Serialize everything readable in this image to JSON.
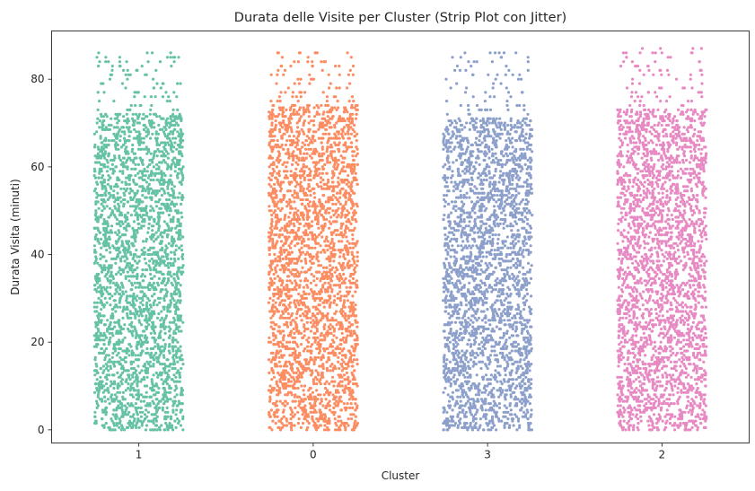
{
  "chart_data": {
    "type": "scatter",
    "variant": "strip-plot-with-jitter",
    "title": "Durata delle Visite per Cluster (Strip Plot con Jitter)",
    "xlabel": "Cluster",
    "ylabel": "Durata Visita (minuti)",
    "categories": [
      "1",
      "0",
      "3",
      "2"
    ],
    "y_ticks": [
      0,
      20,
      40,
      60,
      80
    ],
    "ylim": [
      -3,
      91
    ],
    "grid": false,
    "legend": "none",
    "series": [
      {
        "category": "1",
        "color": "#66c2a5",
        "dense_min": 0,
        "dense_max": 72,
        "sparse_max": 86,
        "sparse_values": [
          73,
          74,
          75,
          76,
          77,
          78,
          79,
          80,
          81,
          82,
          83,
          84,
          85,
          86
        ]
      },
      {
        "category": "0",
        "color": "#fc8d62",
        "dense_min": 0,
        "dense_max": 74,
        "sparse_max": 86,
        "sparse_values": [
          75,
          76,
          77,
          78,
          79,
          80,
          81,
          82,
          83,
          84,
          85,
          86
        ]
      },
      {
        "category": "3",
        "color": "#8da0cb",
        "dense_min": 0,
        "dense_max": 71,
        "sparse_max": 86,
        "sparse_values": [
          72,
          73,
          74,
          75,
          76,
          77,
          78,
          79,
          80,
          81,
          82,
          83,
          84,
          85,
          86
        ]
      },
      {
        "category": "2",
        "color": "#e78ac3",
        "dense_min": 0,
        "dense_max": 73,
        "sparse_max": 87,
        "sparse_values": [
          74,
          75,
          76,
          77,
          78,
          79,
          80,
          81,
          82,
          83,
          84,
          85,
          86,
          87
        ]
      }
    ]
  }
}
